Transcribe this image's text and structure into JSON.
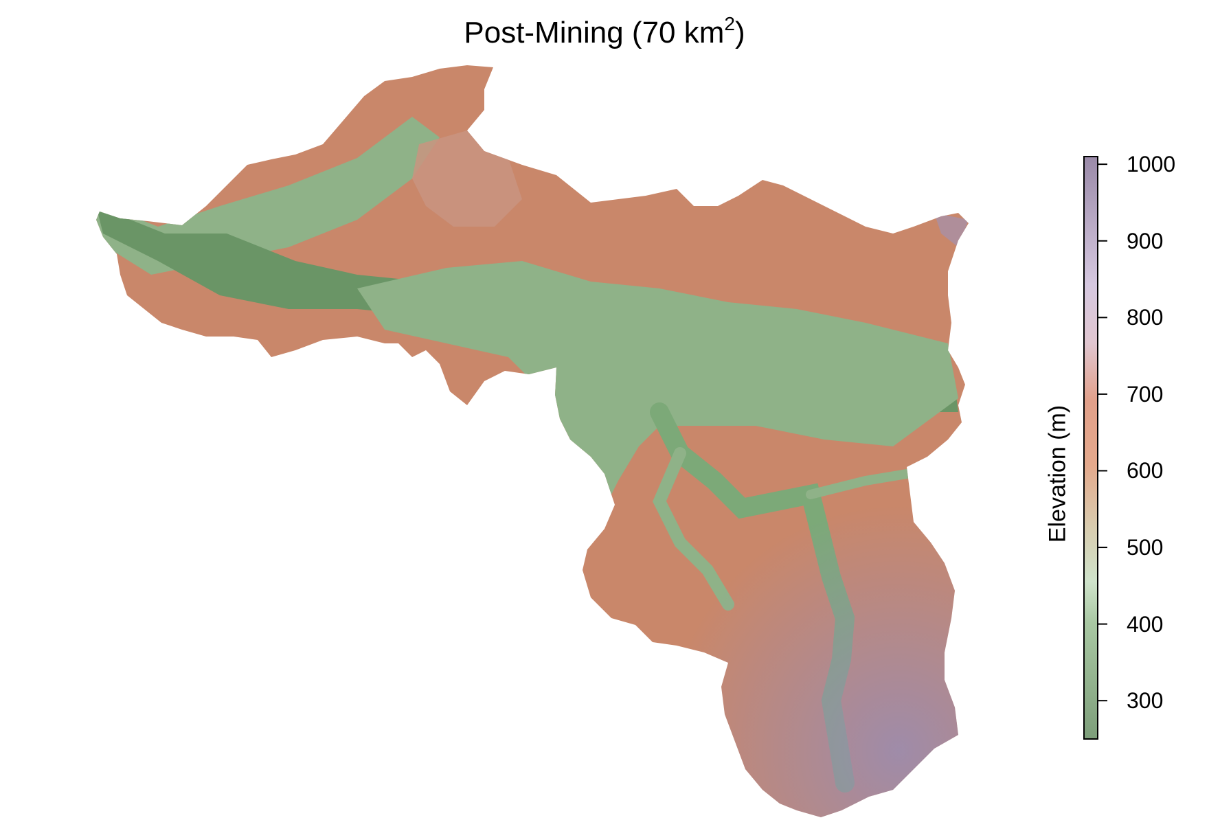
{
  "title": {
    "text": "Post-Mining (70 km",
    "superscript": "2",
    "suffix": ")"
  },
  "legend": {
    "label": "Elevation (m)",
    "min": 250,
    "max": 1010,
    "ticks": [
      "300",
      "400",
      "500",
      "600",
      "700",
      "800",
      "900",
      "1000"
    ],
    "tick_values": [
      300,
      400,
      500,
      600,
      700,
      800,
      900,
      1000
    ],
    "colors": {
      "low": "#7a9c78",
      "mid_low": "#c6dfc3",
      "mid": "#d6c8a8",
      "mid_high": "#e6a088",
      "high": "#dcc8da",
      "top": "#9c88a8"
    }
  },
  "map": {
    "colors": {
      "valley": "#5f8a5c",
      "lowland": "#8fb288",
      "slope": "#c9876a",
      "ridge": "#b06a55",
      "summit": "#9a8cb0"
    }
  }
}
